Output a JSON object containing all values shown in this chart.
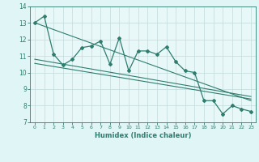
{
  "xlabel": "Humidex (Indice chaleur)",
  "ylabel": "",
  "bg_color": "#e0f5f5",
  "plot_bg_color": "#e8f8f8",
  "line_color": "#2e7d6e",
  "grid_color": "#c8dede",
  "grid_color_major": "#d8e8e0",
  "xlim": [
    -0.5,
    23.5
  ],
  "ylim": [
    7,
    14
  ],
  "yticks": [
    7,
    8,
    9,
    10,
    11,
    12,
    13,
    14
  ],
  "xticks": [
    0,
    1,
    2,
    3,
    4,
    5,
    6,
    7,
    8,
    9,
    10,
    11,
    12,
    13,
    14,
    15,
    16,
    17,
    18,
    19,
    20,
    21,
    22,
    23
  ],
  "main_x": [
    0,
    1,
    2,
    3,
    4,
    5,
    6,
    7,
    8,
    9,
    10,
    11,
    12,
    13,
    14,
    15,
    16,
    17,
    18,
    19,
    20,
    21,
    22,
    23
  ],
  "main_y": [
    13.0,
    13.4,
    11.1,
    10.45,
    10.8,
    11.5,
    11.6,
    11.9,
    10.5,
    12.1,
    10.1,
    11.3,
    11.3,
    11.1,
    11.55,
    10.65,
    10.1,
    10.0,
    8.3,
    8.3,
    7.5,
    8.0,
    7.8,
    7.65
  ],
  "trend1_x": [
    0,
    23
  ],
  "trend1_y": [
    13.0,
    8.3
  ],
  "trend2_x": [
    0,
    23
  ],
  "trend2_y": [
    10.8,
    8.55
  ],
  "trend3_x": [
    0,
    23
  ],
  "trend3_y": [
    10.55,
    8.4
  ]
}
